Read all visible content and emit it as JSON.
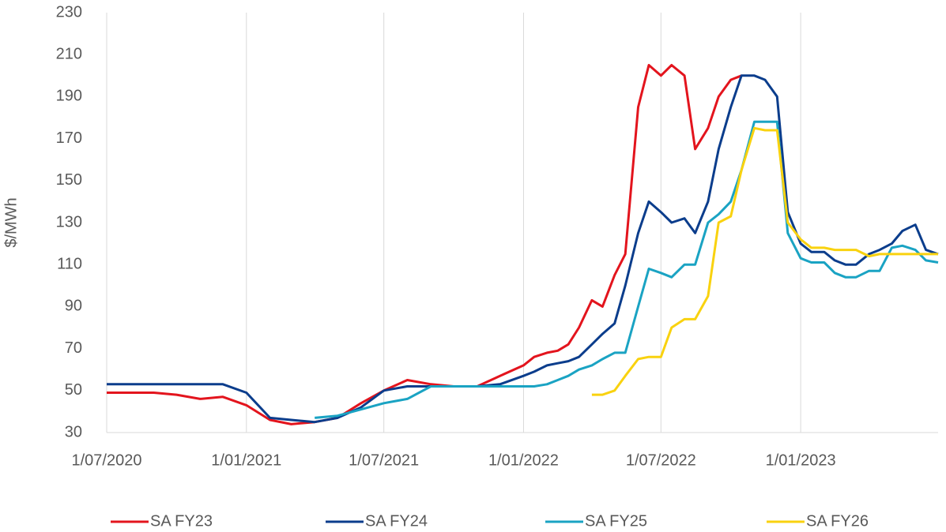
{
  "chart_data": {
    "type": "line",
    "y_label": "$/MWh",
    "x": [
      "2020-07-01",
      "2020-08-01",
      "2020-09-01",
      "2020-10-01",
      "2020-11-01",
      "2020-12-01",
      "2021-01-01",
      "2021-02-01",
      "2021-03-01",
      "2021-04-01",
      "2021-05-01",
      "2021-06-01",
      "2021-07-01",
      "2021-08-01",
      "2021-09-01",
      "2021-10-01",
      "2021-11-01",
      "2021-12-01",
      "2022-01-01",
      "2022-01-15",
      "2022-02-01",
      "2022-02-15",
      "2022-03-01",
      "2022-03-15",
      "2022-04-01",
      "2022-04-15",
      "2022-05-01",
      "2022-05-15",
      "2022-06-01",
      "2022-06-15",
      "2022-07-01",
      "2022-07-15",
      "2022-08-01",
      "2022-08-15",
      "2022-09-01",
      "2022-09-15",
      "2022-10-01",
      "2022-10-15",
      "2022-11-01",
      "2022-11-15",
      "2022-12-01",
      "2022-12-15",
      "2023-01-01",
      "2023-01-15",
      "2023-02-01",
      "2023-02-15",
      "2023-03-01",
      "2023-03-15",
      "2023-04-01",
      "2023-04-15",
      "2023-05-01",
      "2023-05-15",
      "2023-06-01",
      "2023-06-15",
      "2023-07-01"
    ],
    "series": [
      {
        "name": "SA FY23",
        "color": "#e3141d",
        "values": [
          49,
          49,
          49,
          48,
          46,
          47,
          43,
          36,
          34,
          35,
          37,
          44,
          50,
          55,
          53,
          52,
          52,
          57,
          62,
          66,
          68,
          69,
          72,
          80,
          93,
          90,
          105,
          115,
          185,
          205,
          200,
          205,
          200,
          165,
          175,
          190,
          198,
          200,
          null,
          null,
          null,
          null,
          null,
          null,
          null,
          null,
          null,
          null,
          null,
          null,
          null,
          null,
          null,
          null,
          null
        ]
      },
      {
        "name": "SA FY24",
        "color": "#0b3d8c",
        "values": [
          53,
          53,
          53,
          53,
          53,
          53,
          49,
          37,
          36,
          35,
          37,
          42,
          50,
          52,
          52,
          52,
          52,
          53,
          57,
          59,
          62,
          63,
          64,
          66,
          72,
          77,
          82,
          100,
          125,
          140,
          135,
          130,
          132,
          125,
          140,
          165,
          185,
          200,
          200,
          198,
          190,
          135,
          120,
          116,
          116,
          112,
          110,
          110,
          115,
          117,
          120,
          126,
          129,
          117,
          115
        ]
      },
      {
        "name": "SA FY25",
        "color": "#1aa3c3",
        "values": [
          null,
          null,
          null,
          null,
          null,
          null,
          null,
          null,
          null,
          37,
          38,
          41,
          44,
          46,
          52,
          52,
          52,
          52,
          52,
          52,
          53,
          55,
          57,
          60,
          62,
          65,
          68,
          68,
          90,
          108,
          106,
          104,
          110,
          110,
          130,
          134,
          140,
          155,
          178,
          178,
          178,
          125,
          113,
          111,
          111,
          106,
          104,
          104,
          107,
          107,
          118,
          119,
          117,
          112,
          111
        ]
      },
      {
        "name": "SA FY26",
        "color": "#f9d20f",
        "values": [
          null,
          null,
          null,
          null,
          null,
          null,
          null,
          null,
          null,
          null,
          null,
          null,
          null,
          null,
          null,
          null,
          null,
          null,
          null,
          null,
          null,
          null,
          null,
          null,
          48,
          48,
          50,
          57,
          65,
          66,
          66,
          80,
          84,
          84,
          95,
          130,
          133,
          155,
          175,
          174,
          174,
          130,
          122,
          118,
          118,
          117,
          117,
          117,
          114,
          115,
          115,
          115,
          115,
          115,
          115
        ]
      }
    ],
    "xlim": [
      "2020-07-01",
      "2023-07-01"
    ],
    "xticks": [
      {
        "value": "2020-07-01",
        "label": "1/07/2020"
      },
      {
        "value": "2021-01-01",
        "label": "1/01/2021"
      },
      {
        "value": "2021-07-01",
        "label": "1/07/2021"
      },
      {
        "value": "2022-01-01",
        "label": "1/01/2022"
      },
      {
        "value": "2022-07-01",
        "label": "1/07/2022"
      },
      {
        "value": "2023-01-01",
        "label": "1/01/2023"
      }
    ],
    "ylim": [
      30,
      230
    ],
    "yticks": [
      30,
      50,
      70,
      90,
      110,
      130,
      150,
      170,
      190,
      210,
      230
    ],
    "grid": true,
    "legend": "bottom"
  }
}
